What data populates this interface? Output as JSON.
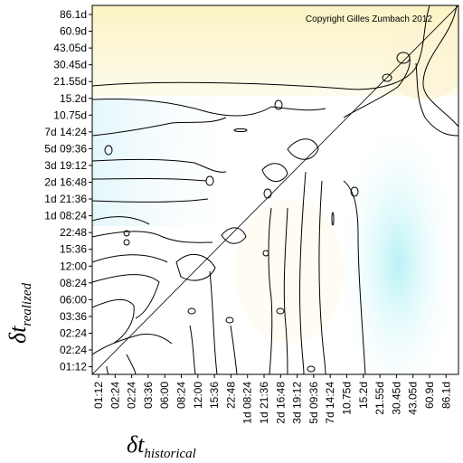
{
  "chart_data": {
    "type": "heatmap",
    "copyright": "Copyright Gilles Zumbach 2012",
    "xlabel_main": "δt",
    "xlabel_sub": "historical",
    "ylabel_main": "δt",
    "ylabel_sub": "realized",
    "x_ticks": [
      "01:12",
      "02:24",
      "02:24",
      "03:36",
      "06:00",
      "08:24",
      "12:00",
      "15:36",
      "22:48",
      "1d 08:24",
      "1d 21:36",
      "2d 16:48",
      "3d 19:12",
      "5d 09:36",
      "7d 14:24",
      "10.75d",
      "15.2d",
      "21.55d",
      "30.45d",
      "43.05d",
      "60.9d",
      "86.1d"
    ],
    "y_ticks": [
      "86.1d",
      "60.9d",
      "43.05d",
      "30.45d",
      "21.55d",
      "15.2d",
      "10.75d",
      "7d 14:24",
      "5d 09:36",
      "3d 19:12",
      "2d 16:48",
      "1d 21:36",
      "1d 08:24",
      "22:48",
      "15:36",
      "12:00",
      "08:24",
      "06:00",
      "03:36",
      "02:24",
      "02:24",
      "01:12"
    ],
    "diagonal": true,
    "colors": {
      "yellow": "#fbf4c8",
      "cyan": "#c6f4f6",
      "white": "#ffffff",
      "contour": "#000000"
    }
  }
}
